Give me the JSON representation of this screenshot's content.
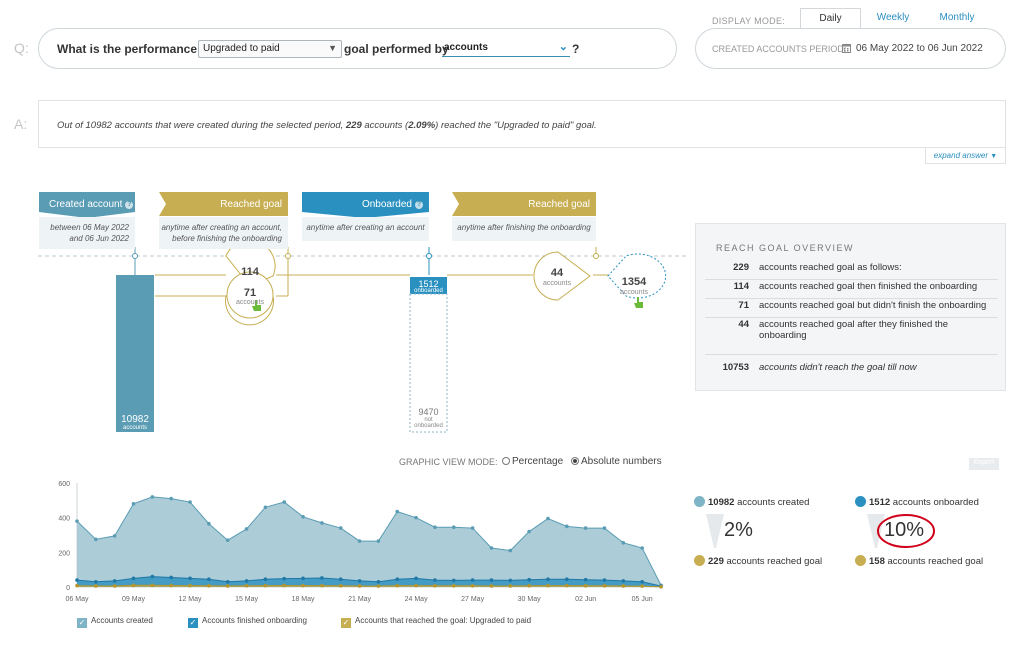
{
  "question": {
    "letter": "Q:",
    "prefix": "What is the performance of",
    "goal_select": "Upgraded to paid",
    "middle": "goal performed by",
    "subject_select": "accounts",
    "suffix": "?"
  },
  "display_mode": {
    "label": "DISPLAY MODE:",
    "tabs": [
      "Daily",
      "Weekly",
      "Monthly"
    ],
    "active": "Daily",
    "period_label": "CREATED ACCOUNTS PERIOD:",
    "period_value": "06 May 2022 to 06 Jun 2022"
  },
  "answer": {
    "letter": "A:",
    "text_pre": "Out of 10982 accounts that were created during the selected period, ",
    "text_bold1": "229",
    "text_mid": " accounts (",
    "text_bold2": "2.09%",
    "text_post": ") reached the \"Upgraded to paid\" goal.",
    "expand": "expand answer"
  },
  "funnel": {
    "headers": [
      {
        "title": "Created account",
        "sub1": "between 06 May 2022",
        "sub2": "and 06 Jun 2022",
        "color": "#5a9cb4"
      },
      {
        "title": "Reached goal",
        "sub1": "anytime after creating an account,",
        "sub2": "before finishing the onboarding",
        "color": "#c7ae52"
      },
      {
        "title": "Onboarded",
        "sub1": "anytime after creating an account",
        "sub2": "",
        "color": "#2a90bf"
      },
      {
        "title": "Reached goal",
        "sub1": "anytime after finishing the onboarding",
        "sub2": "",
        "color": "#c7ae52"
      }
    ],
    "created_count": "10982",
    "created_unit": "accounts",
    "goal_before_top": "114",
    "goal_before_bottom": "71",
    "goal_before_unit": "accounts",
    "onboarded_count": "1512",
    "onboarded_unit": "onboarded",
    "not_onboarded_count": "9470",
    "not_onboarded_unit1": "not",
    "not_onboarded_unit2": "onboarded",
    "goal_after": "44",
    "goal_after_unit": "accounts",
    "not_reached_after": "1354",
    "not_reached_after_unit": "accounts"
  },
  "overview": {
    "title": "REACH GOAL OVERVIEW",
    "rows": [
      {
        "num": "229",
        "text": "accounts reached goal as follows:"
      },
      {
        "num": "114",
        "text": "accounts reached goal then finished the onboarding"
      },
      {
        "num": "71",
        "text": "accounts reached goal but didn't finish the onboarding"
      },
      {
        "num": "44",
        "text": "accounts reached goal after they finished the onboarding"
      }
    ],
    "footer_num": "10753",
    "footer_text": "accounts didn't reach the goal till now"
  },
  "graphic_view": {
    "label": "GRAPHIC VIEW MODE:",
    "options": [
      "Percentage",
      "Absolute numbers"
    ],
    "selected": "Absolute numbers",
    "export": "Export"
  },
  "stats": {
    "created": {
      "num": "10982",
      "text": "accounts created"
    },
    "created_goal": {
      "num": "229",
      "text": "accounts reached goal"
    },
    "created_pct": "2%",
    "onboarded": {
      "num": "1512",
      "text": "accounts onboarded"
    },
    "onboarded_goal": {
      "num": "158",
      "text": "accounts reached goal"
    },
    "onboarded_pct": "10%"
  },
  "legend": [
    {
      "label": "Accounts created",
      "color": "#7fb3c6"
    },
    {
      "label": "Accounts finished onboarding",
      "color": "#2a90bf"
    },
    {
      "label": "Accounts that reached the goal: Upgraded to paid",
      "color": "#c7ae52"
    }
  ],
  "colors": {
    "created": "#5a9cb4",
    "onboarded": "#2a90bf",
    "goal": "#c7ae52",
    "highlight": "#d0021b"
  },
  "chart_data": {
    "type": "area",
    "x": [
      "06 May",
      "07 May",
      "08 May",
      "09 May",
      "10 May",
      "11 May",
      "12 May",
      "13 May",
      "14 May",
      "15 May",
      "16 May",
      "17 May",
      "18 May",
      "19 May",
      "20 May",
      "21 May",
      "22 May",
      "23 May",
      "24 May",
      "25 May",
      "26 May",
      "27 May",
      "28 May",
      "29 May",
      "30 May",
      "31 May",
      "01 Jun",
      "02 Jun",
      "03 Jun",
      "04 Jun",
      "05 Jun",
      "06 Jun"
    ],
    "tick_labels": [
      "06 May",
      "09 May",
      "12 May",
      "15 May",
      "18 May",
      "21 May",
      "24 May",
      "27 May",
      "30 May",
      "02 Jun",
      "05 Jun"
    ],
    "ylim": [
      0,
      600
    ],
    "yticks": [
      0,
      200,
      400,
      600
    ],
    "series": [
      {
        "name": "Accounts created",
        "values": [
          380,
          275,
          295,
          480,
          520,
          510,
          490,
          365,
          270,
          335,
          460,
          490,
          405,
          370,
          340,
          265,
          265,
          435,
          400,
          345,
          345,
          340,
          225,
          210,
          320,
          395,
          350,
          340,
          340,
          255,
          225,
          10
        ]
      },
      {
        "name": "Accounts finished onboarding",
        "values": [
          40,
          30,
          35,
          50,
          60,
          55,
          50,
          45,
          30,
          35,
          45,
          48,
          50,
          52,
          45,
          35,
          30,
          45,
          50,
          40,
          38,
          40,
          40,
          38,
          42,
          45,
          45,
          42,
          40,
          35,
          30,
          5
        ]
      },
      {
        "name": "Accounts that reached the goal: Upgraded to paid",
        "values": [
          8,
          6,
          6,
          10,
          10,
          9,
          8,
          7,
          6,
          7,
          8,
          9,
          8,
          8,
          7,
          6,
          5,
          8,
          8,
          7,
          7,
          7,
          6,
          6,
          7,
          8,
          8,
          7,
          7,
          6,
          5,
          1
        ]
      }
    ]
  }
}
